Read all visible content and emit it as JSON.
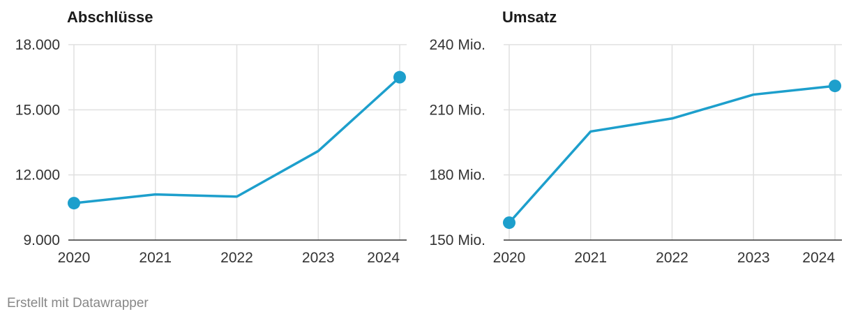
{
  "chart_data": [
    {
      "type": "line",
      "title": "Abschlüsse",
      "x": [
        "2020",
        "2021",
        "2022",
        "2023",
        "2024"
      ],
      "series": [
        {
          "values": [
            10700,
            11100,
            11000,
            13100,
            16500
          ]
        }
      ],
      "yticks": [
        9000,
        12000,
        15000,
        18000
      ],
      "ytick_labels": [
        "9.000",
        "12.000",
        "15.000",
        "18.000"
      ],
      "ylim": [
        9000,
        18000
      ],
      "markers_on": [
        "2020",
        "2024"
      ],
      "color": "#1d9fcc",
      "grid": true
    },
    {
      "type": "line",
      "title": "Umsatz",
      "x": [
        "2020",
        "2021",
        "2022",
        "2023",
        "2024"
      ],
      "series": [
        {
          "values": [
            158,
            200,
            206,
            217,
            221
          ]
        }
      ],
      "yticks": [
        150,
        180,
        210,
        240
      ],
      "ytick_labels": [
        "150 Mio.",
        "180 Mio.",
        "210 Mio.",
        "240 Mio."
      ],
      "ylim": [
        150,
        240
      ],
      "markers_on": [
        "2020",
        "2024"
      ],
      "color": "#1d9fcc",
      "grid": true
    }
  ],
  "footer": "Erstellt mit Datawrapper"
}
